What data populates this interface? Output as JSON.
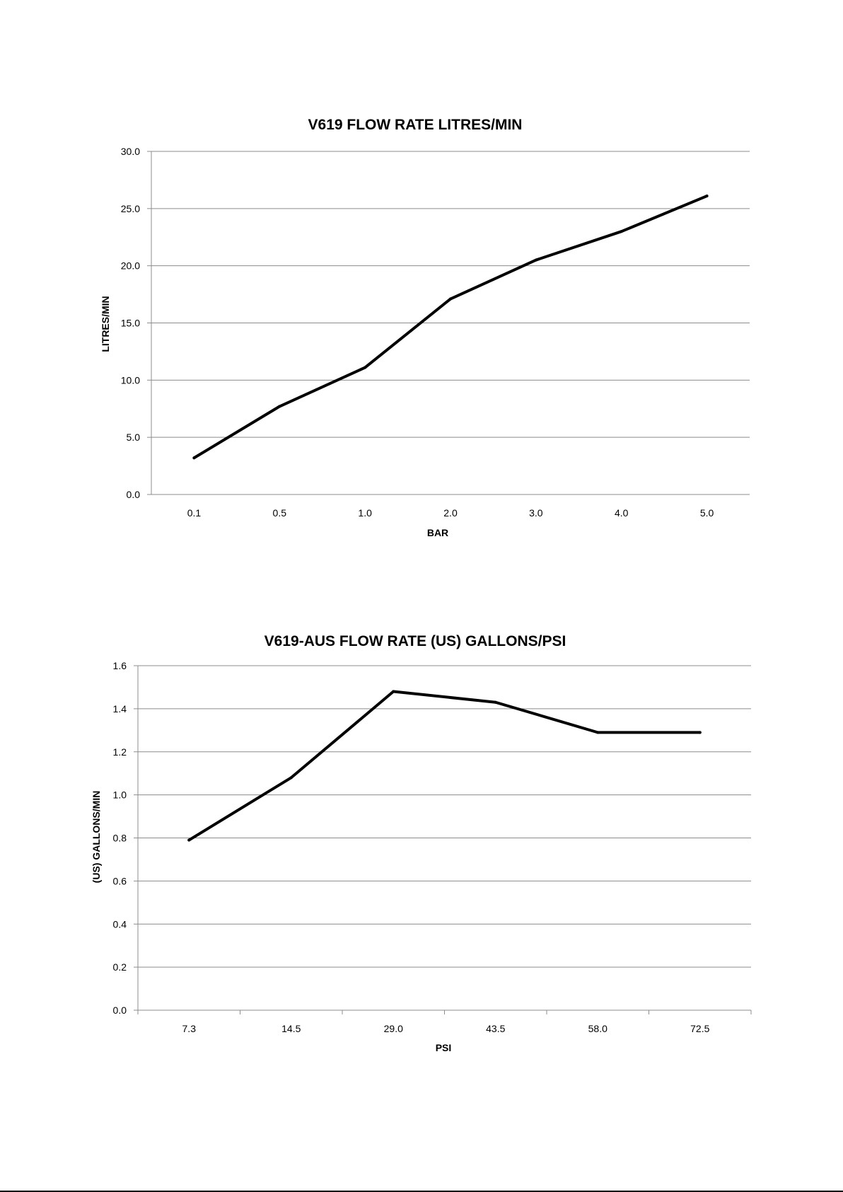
{
  "chart_data": [
    {
      "type": "line",
      "title": "V619 FLOW RATE LITRES/MIN",
      "xlabel": "BAR",
      "ylabel": "LITRES/MIN",
      "categories": [
        "0.1",
        "0.5",
        "1.0",
        "2.0",
        "3.0",
        "4.0",
        "5.0"
      ],
      "series": [
        {
          "values": [
            3.2,
            7.7,
            11.1,
            17.1,
            20.5,
            23.0,
            26.1
          ]
        }
      ],
      "ylim": [
        0,
        30
      ],
      "yticks": [
        "0.0",
        "5.0",
        "10.0",
        "15.0",
        "20.0",
        "25.0",
        "30.0"
      ],
      "grid": true,
      "legend": "none",
      "x_tick_marks": false,
      "line_color": "#000000"
    },
    {
      "type": "line",
      "title": "V619-AUS FLOW RATE (US) GALLONS/PSI",
      "xlabel": "PSI",
      "ylabel": "(US) GALLONS/MIN",
      "categories": [
        "7.3",
        "14.5",
        "29.0",
        "43.5",
        "58.0",
        "72.5"
      ],
      "series": [
        {
          "values": [
            0.79,
            1.08,
            1.48,
            1.43,
            1.29,
            1.29
          ]
        }
      ],
      "ylim": [
        0,
        1.6
      ],
      "yticks": [
        "0.0",
        "0.2",
        "0.4",
        "0.6",
        "0.8",
        "1.0",
        "1.2",
        "1.4",
        "1.6"
      ],
      "grid": true,
      "legend": "none",
      "x_tick_marks": true,
      "line_color": "#000000"
    }
  ]
}
